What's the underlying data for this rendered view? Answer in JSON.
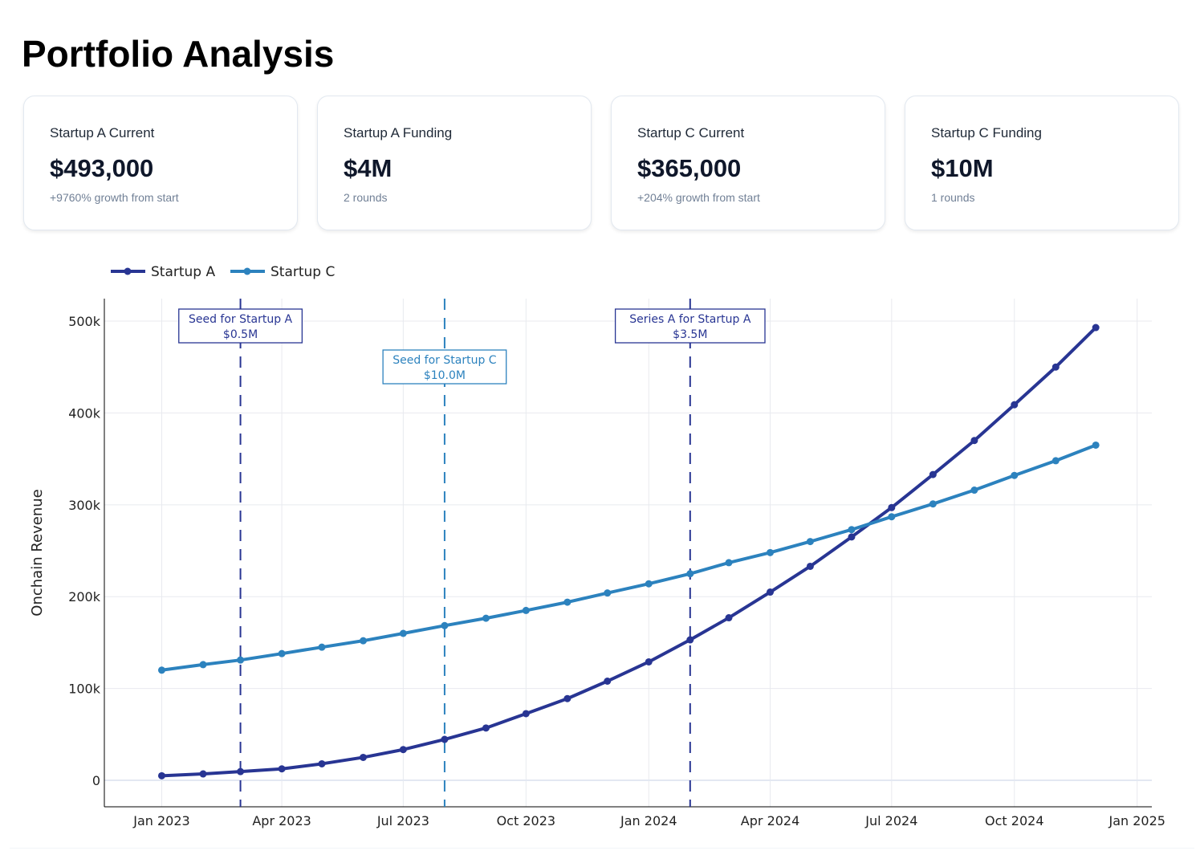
{
  "title": "Portfolio Analysis",
  "cards": [
    {
      "label": "Startup A Current",
      "value": "$493,000",
      "sub": "+9760% growth from start"
    },
    {
      "label": "Startup A Funding",
      "value": "$4M",
      "sub": "2 rounds"
    },
    {
      "label": "Startup C Current",
      "value": "$365,000",
      "sub": "+204% growth from start"
    },
    {
      "label": "Startup C Funding",
      "value": "$10M",
      "sub": "1 rounds"
    }
  ],
  "chart_data": {
    "type": "line",
    "title": "",
    "xlabel": "",
    "ylabel": "Onchain Revenue",
    "ylim": [
      -28800,
      524500
    ],
    "xlim": [
      "2022-11-19",
      "2025-01-12"
    ],
    "yticks": [
      0,
      100000,
      200000,
      300000,
      400000,
      500000
    ],
    "ytick_labels": [
      "0",
      "100k",
      "200k",
      "300k",
      "400k",
      "500k"
    ],
    "xticks": [
      "2023-01-01",
      "2023-04-01",
      "2023-07-01",
      "2023-10-01",
      "2024-01-01",
      "2024-04-01",
      "2024-07-01",
      "2024-10-01",
      "2025-01-01"
    ],
    "xtick_labels": [
      "Jan 2023",
      "Apr 2023",
      "Jul 2023",
      "Oct 2023",
      "Jan 2024",
      "Apr 2024",
      "Jul 2024",
      "Oct 2024",
      "Jan 2025"
    ],
    "grid": true,
    "legend_position": "top-left",
    "x": [
      "2023-01-01",
      "2023-02-01",
      "2023-03-01",
      "2023-04-01",
      "2023-05-01",
      "2023-06-01",
      "2023-07-01",
      "2023-08-01",
      "2023-09-01",
      "2023-10-01",
      "2023-11-01",
      "2023-12-01",
      "2024-01-01",
      "2024-02-01",
      "2024-03-01",
      "2024-04-01",
      "2024-05-01",
      "2024-06-01",
      "2024-07-01",
      "2024-08-01",
      "2024-09-01",
      "2024-10-01",
      "2024-11-01",
      "2024-12-01"
    ],
    "series": [
      {
        "name": "Startup A",
        "color": "#283593",
        "values": [
          5000,
          7000,
          9500,
          12500,
          18000,
          25000,
          33500,
          44600,
          57000,
          72600,
          89000,
          108000,
          129000,
          153000,
          177000,
          205000,
          233000,
          265000,
          297000,
          333000,
          370000,
          409000,
          450000,
          493000
        ]
      },
      {
        "name": "Startup C",
        "color": "#2c82be",
        "values": [
          120000,
          126000,
          131000,
          138000,
          145000,
          152000,
          160000,
          168500,
          176500,
          185000,
          194000,
          204000,
          214000,
          225000,
          237000,
          248000,
          260000,
          273000,
          287000,
          301000,
          316000,
          332000,
          348000,
          365000
        ]
      }
    ],
    "events": [
      {
        "date": "2023-03-01",
        "line1": "Seed for Startup A",
        "line2": "$0.5M",
        "color": "#283593",
        "row": 0
      },
      {
        "date": "2023-08-01",
        "line1": "Seed for Startup C",
        "line2": "$10.0M",
        "color": "#2c82be",
        "row": 1
      },
      {
        "date": "2024-02-01",
        "line1": "Series A for Startup A",
        "line2": "$3.5M",
        "color": "#283593",
        "row": 0
      }
    ]
  }
}
